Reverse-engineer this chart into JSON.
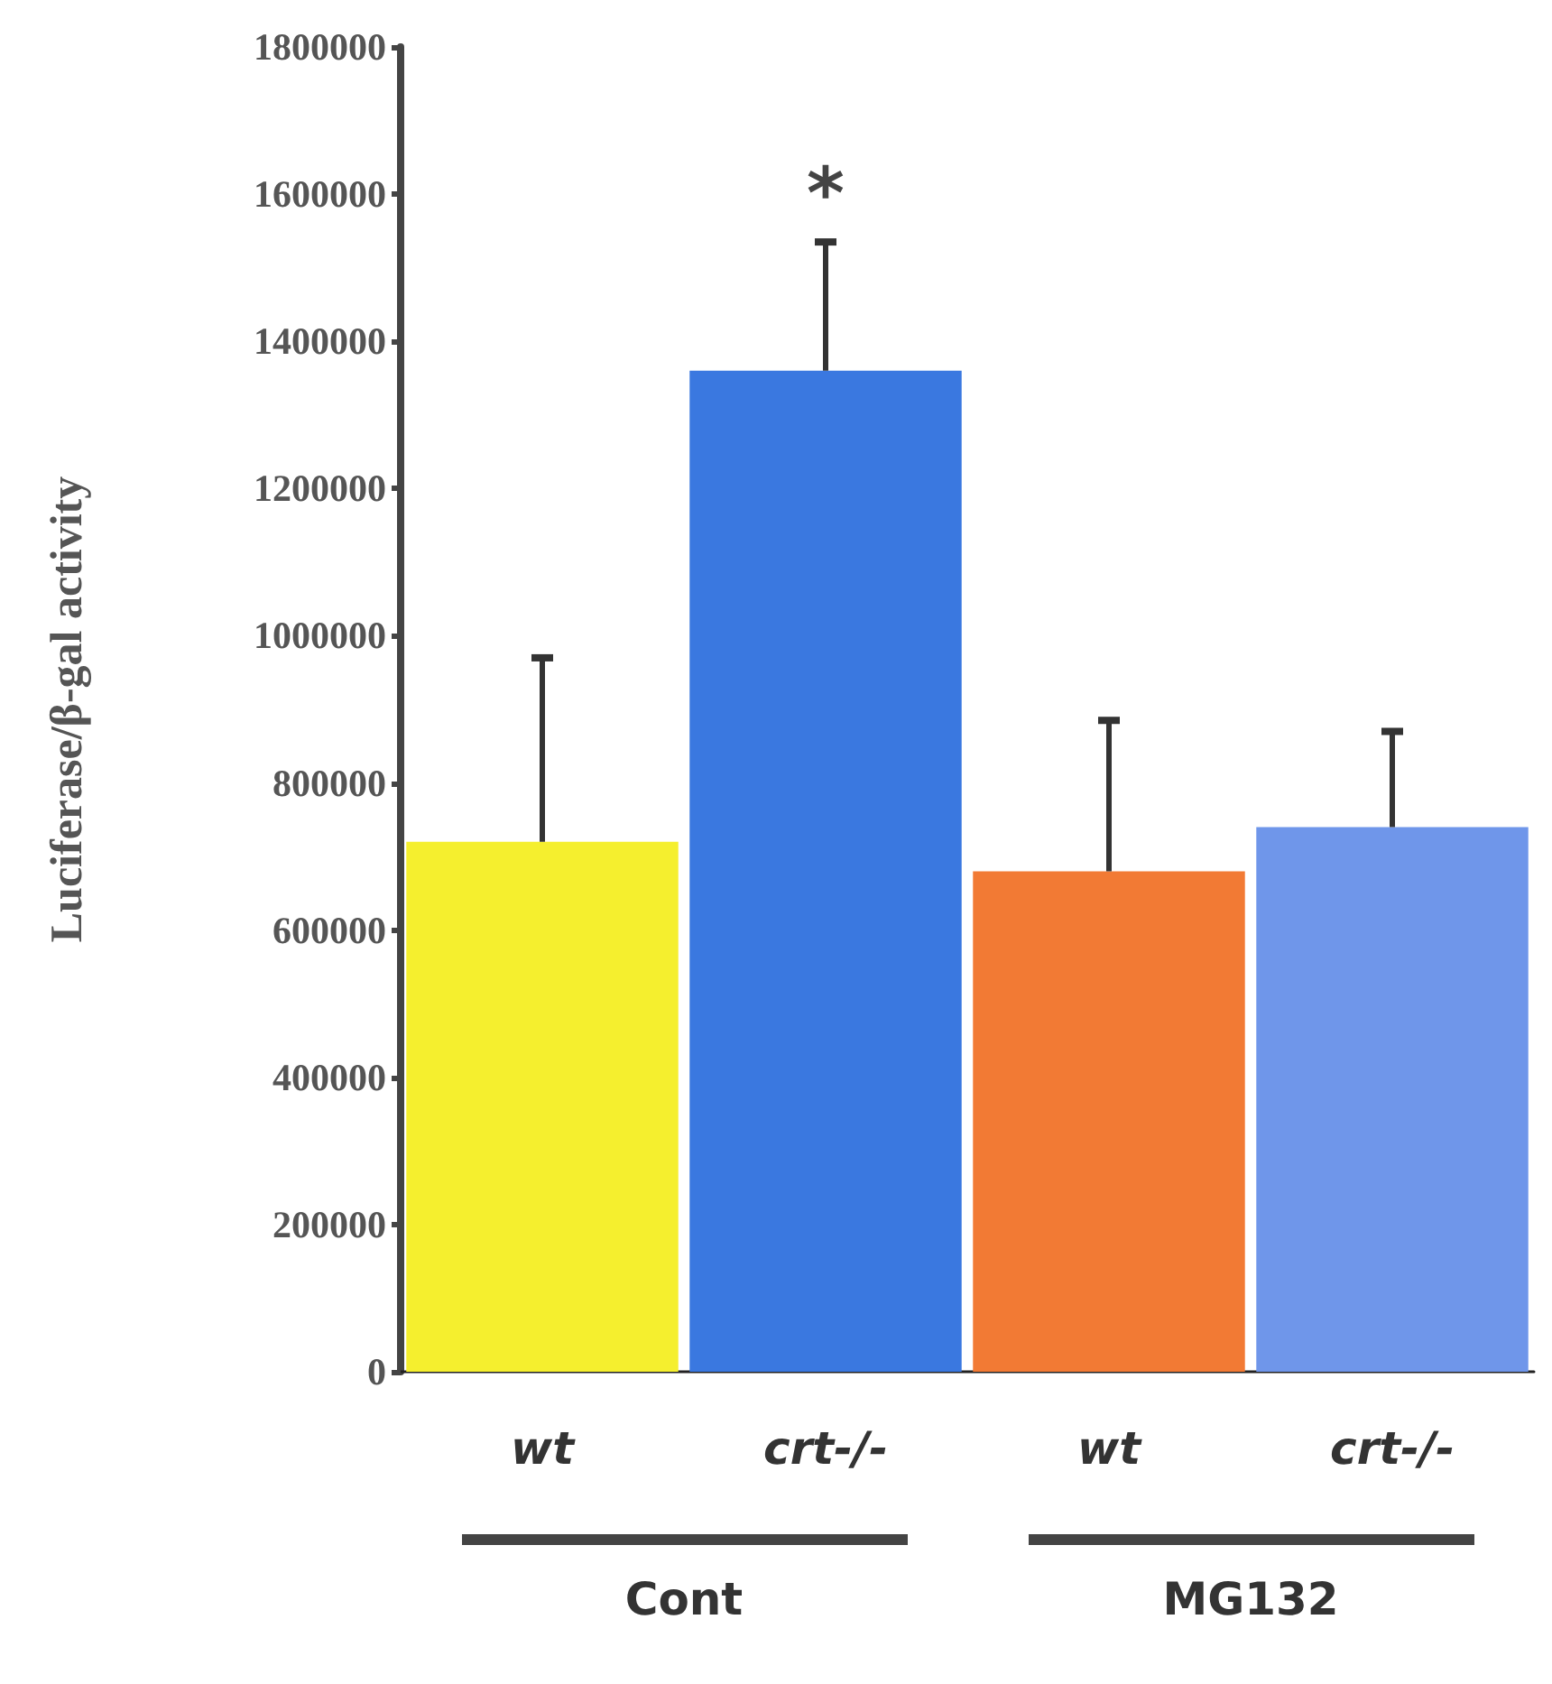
{
  "chart_data": {
    "type": "bar",
    "ylabel": "Luciferase/β-gal activity",
    "categories": [
      "wt",
      "crt-/-",
      "wt",
      "crt-/-"
    ],
    "values": [
      720000,
      1360000,
      680000,
      740000
    ],
    "colors": [
      "#f5ef2e",
      "#3a78e0",
      "#f27a34",
      "#6f96ea"
    ],
    "errors": [
      [
        720000,
        970000
      ],
      [
        1360000,
        1535000
      ],
      [
        680000,
        885000
      ],
      [
        740000,
        870000
      ]
    ],
    "value_labels": [
      null,
      "*",
      null,
      null
    ],
    "annotations": [
      "Cont",
      "MG132"
    ],
    "ylim": [
      0,
      1800000
    ],
    "yticks": [
      0,
      200000,
      400000,
      600000,
      800000,
      1000000,
      1200000,
      1400000,
      1600000,
      1800000
    ]
  }
}
